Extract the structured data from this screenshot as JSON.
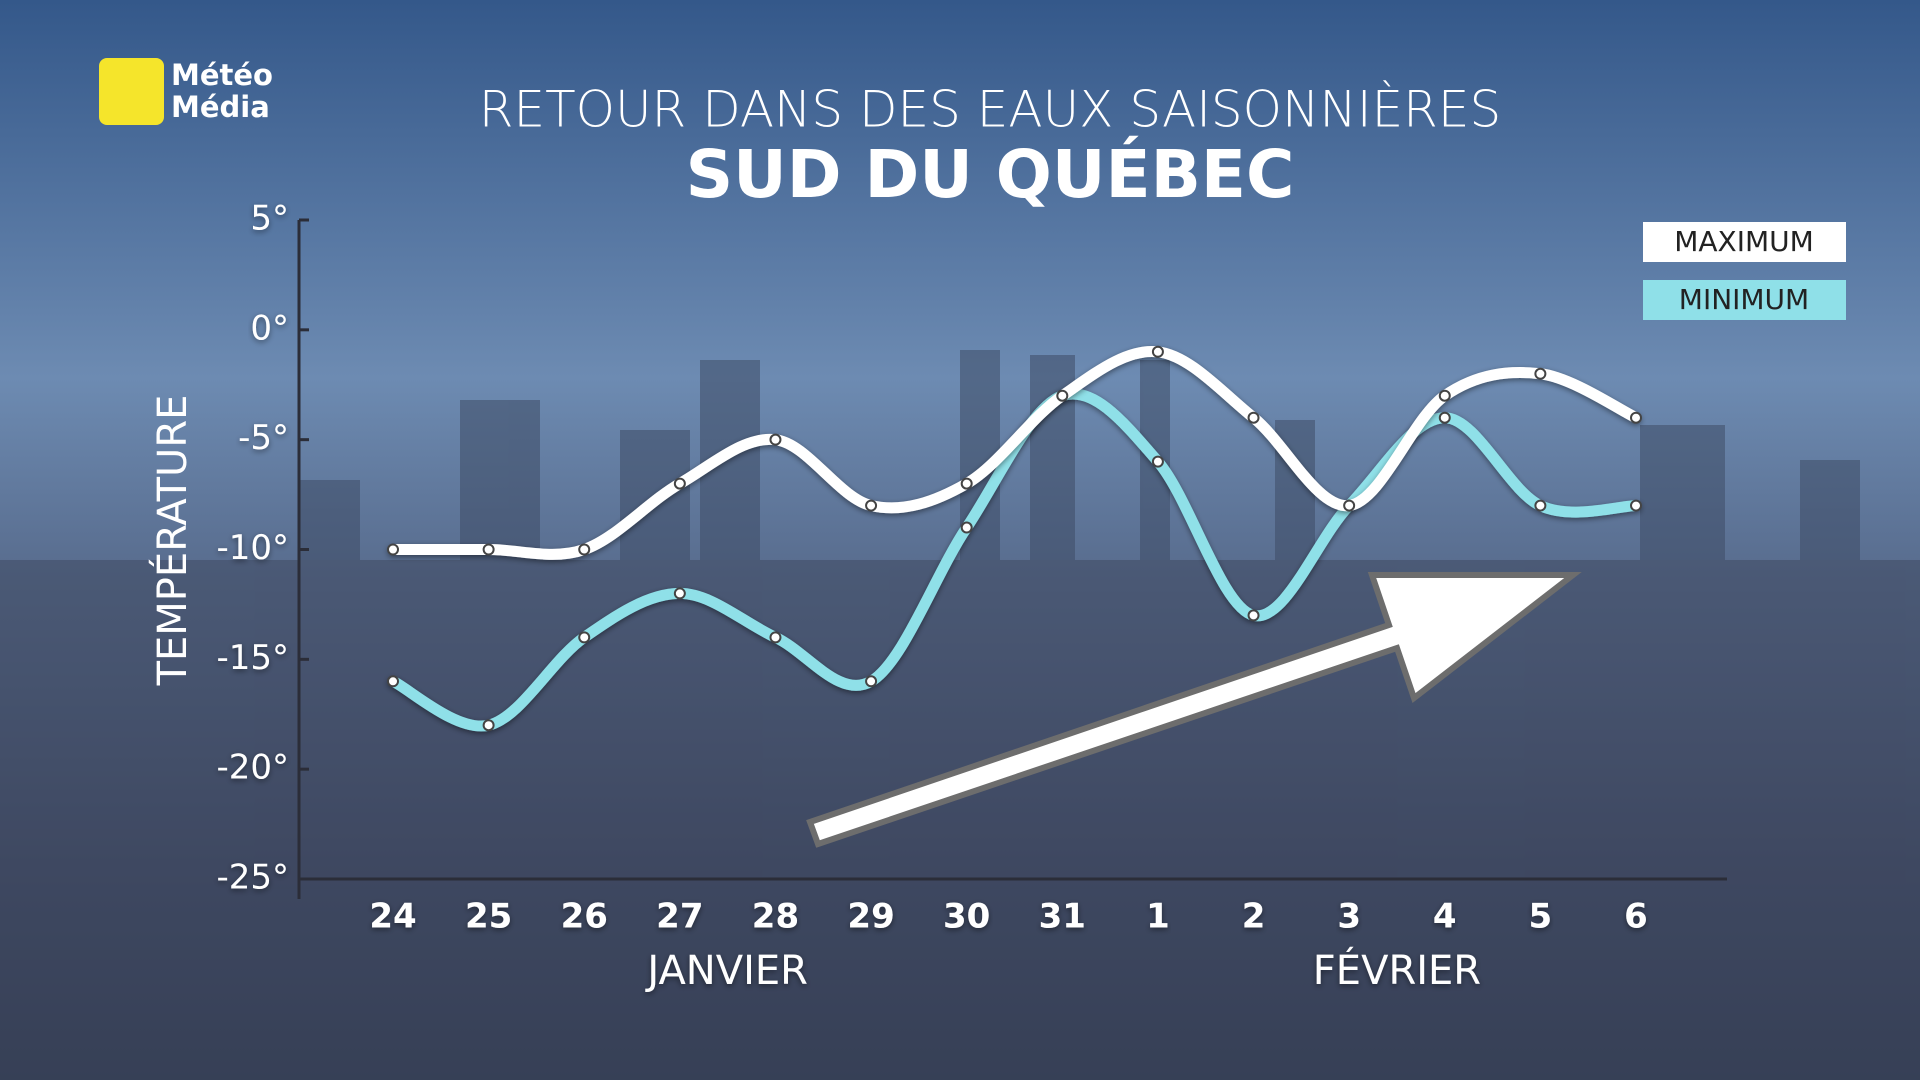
{
  "logo": {
    "line1": "Météo",
    "line2": "Média"
  },
  "chart_data": {
    "type": "line",
    "title": "RETOUR DANS DES EAUX SAISONNIÈRES",
    "subtitle": "SUD DU QUÉBEC",
    "y_label": "TEMPÉRATURE",
    "categories": [
      "24",
      "25",
      "26",
      "27",
      "28",
      "29",
      "30",
      "31",
      "1",
      "2",
      "3",
      "4",
      "5",
      "6"
    ],
    "months": [
      "JANVIER",
      "FÉVRIER"
    ],
    "series": [
      {
        "name": "MAXIMUM",
        "color": "#ffffff",
        "values": [
          -10,
          -10,
          -10,
          -7,
          -5,
          -8,
          -7,
          -3,
          -1,
          -4,
          -8,
          -3,
          -2,
          -4
        ]
      },
      {
        "name": "MINIMUM",
        "color": "#8fe0e8",
        "values": [
          -16,
          -18,
          -14,
          -12,
          -14,
          -16,
          -9,
          -3,
          -6,
          -13,
          -8,
          -4,
          -8,
          -8
        ]
      }
    ],
    "ylim": [
      -25,
      5
    ],
    "yticks": [
      {
        "value": 5,
        "label": "5°"
      },
      {
        "value": 0,
        "label": "0°"
      },
      {
        "value": -5,
        "label": "-5°"
      },
      {
        "value": -10,
        "label": "-10°"
      },
      {
        "value": -15,
        "label": "-15°"
      },
      {
        "value": -20,
        "label": "-20°"
      },
      {
        "value": -25,
        "label": "-25°"
      }
    ],
    "smooth": true,
    "markers": true,
    "grid": false
  }
}
